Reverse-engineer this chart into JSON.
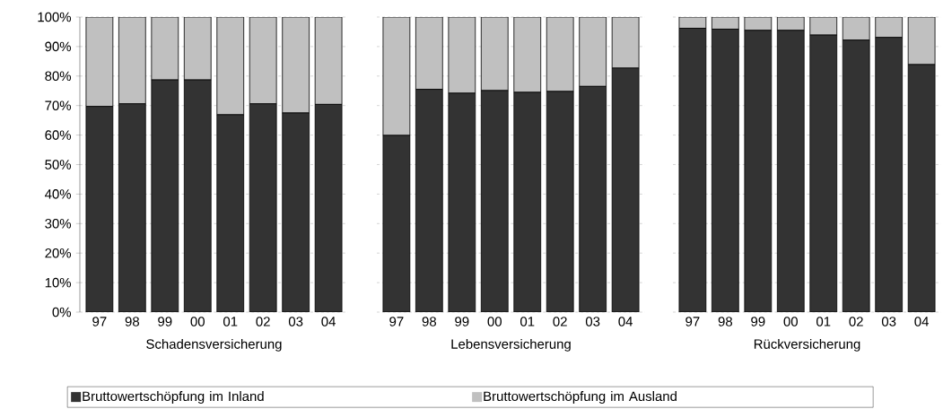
{
  "chart_data": [
    {
      "type": "bar",
      "stacked": true,
      "xlabel": "Schadensversicherung",
      "categories": [
        "97",
        "98",
        "99",
        "00",
        "01",
        "02",
        "03",
        "04"
      ],
      "grid": "y",
      "legend": "bottom",
      "ylim": [
        0,
        100
      ],
      "yticks": [
        {
          "value": 0,
          "label": "0%"
        },
        {
          "value": 10,
          "label": "10%"
        },
        {
          "value": 20,
          "label": "20%"
        },
        {
          "value": 30,
          "label": "30%"
        },
        {
          "value": 40,
          "label": "40%"
        },
        {
          "value": 50,
          "label": "50%"
        },
        {
          "value": 60,
          "label": "60%"
        },
        {
          "value": 70,
          "label": "70%"
        },
        {
          "value": 80,
          "label": "80%"
        },
        {
          "value": 90,
          "label": "90%"
        },
        {
          "value": 100,
          "label": "100%"
        }
      ],
      "series": [
        {
          "name": "Bruttowertschöpfung im Inland",
          "color": "#333333",
          "values": [
            69.7,
            70.6,
            78.7,
            78.7,
            66.9,
            70.6,
            67.5,
            70.4
          ]
        },
        {
          "name": "Bruttowertschöpfung im Ausland",
          "color": "#c0c0c0",
          "values": [
            30.3,
            29.4,
            21.3,
            21.3,
            33.1,
            29.4,
            32.5,
            29.6
          ]
        }
      ]
    },
    {
      "type": "bar",
      "stacked": true,
      "xlabel": "Lebensversicherung",
      "categories": [
        "97",
        "98",
        "99",
        "00",
        "01",
        "02",
        "03",
        "04"
      ],
      "grid": "y",
      "tick_labels": "x",
      "ylim": [
        0,
        100
      ],
      "yticks": [
        0,
        10,
        20,
        30,
        40,
        50,
        60,
        70,
        80,
        90,
        100
      ],
      "series": [
        {
          "color": "#333333",
          "values": [
            59.9,
            75.5,
            74.2,
            75.1,
            74.5,
            74.8,
            76.5,
            82.7
          ]
        },
        {
          "color": "#c0c0c0",
          "values": [
            40.1,
            24.5,
            25.8,
            24.9,
            25.5,
            25.2,
            23.5,
            17.3
          ]
        }
      ]
    },
    {
      "type": "bar",
      "stacked": true,
      "xlabel": "Rückversicherung",
      "categories": [
        "97",
        "98",
        "99",
        "00",
        "01",
        "02",
        "03",
        "04"
      ],
      "grid": "y",
      "tick_labels": "x",
      "ylim": [
        0,
        100
      ],
      "yticks": [
        0,
        10,
        20,
        30,
        40,
        50,
        60,
        70,
        80,
        90,
        100
      ],
      "series": [
        {
          "color": "#333333",
          "values": [
            96.2,
            95.9,
            95.5,
            95.5,
            93.9,
            92.2,
            93.1,
            83.9
          ]
        },
        {
          "color": "#c0c0c0",
          "values": [
            3.8,
            4.1,
            4.5,
            4.5,
            6.1,
            7.8,
            6.9,
            16.1
          ]
        }
      ]
    }
  ]
}
